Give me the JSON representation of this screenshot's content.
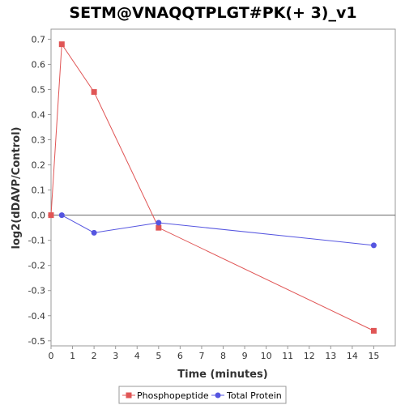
{
  "chart_data": {
    "type": "line",
    "title": "SETM@VNAQQTPLGT#PK(+ 3)_v1",
    "xlabel": "Time (minutes)",
    "ylabel": "log2(dDAVP/Control)",
    "xlim": [
      0,
      16
    ],
    "ylim": [
      -0.52,
      0.74
    ],
    "x_ticks": [
      0,
      1,
      2,
      3,
      4,
      5,
      6,
      7,
      8,
      9,
      10,
      11,
      12,
      13,
      14,
      15
    ],
    "y_ticks": [
      -0.5,
      -0.4,
      -0.3,
      -0.2,
      -0.1,
      0.0,
      0.1,
      0.2,
      0.3,
      0.4,
      0.5,
      0.6,
      0.7
    ],
    "x_tick_labels": [
      "0",
      "1",
      "2",
      "3",
      "4",
      "5",
      "6",
      "7",
      "8",
      "9",
      "10",
      "11",
      "12",
      "13",
      "14",
      "15"
    ],
    "y_tick_labels": [
      "-0.5",
      "-0.4",
      "-0.3",
      "-0.2",
      "-0.1",
      "0.0",
      "0.1",
      "0.2",
      "0.3",
      "0.4",
      "0.5",
      "0.6",
      "0.7"
    ],
    "reference_line_y": 0,
    "grid": false,
    "legend_position": "bottom",
    "series": [
      {
        "name": "Phosphopeptide",
        "color": "#e05555",
        "marker": "square",
        "points": [
          [
            0,
            0.0
          ],
          [
            0.5,
            0.68
          ],
          [
            2,
            0.49
          ],
          [
            5,
            -0.05
          ],
          [
            15,
            -0.46
          ]
        ]
      },
      {
        "name": "Total Protein",
        "color": "#5555e0",
        "marker": "circle",
        "points": [
          [
            0.5,
            0.0
          ],
          [
            2,
            -0.07
          ],
          [
            5,
            -0.03
          ],
          [
            15,
            -0.12
          ]
        ]
      }
    ]
  }
}
